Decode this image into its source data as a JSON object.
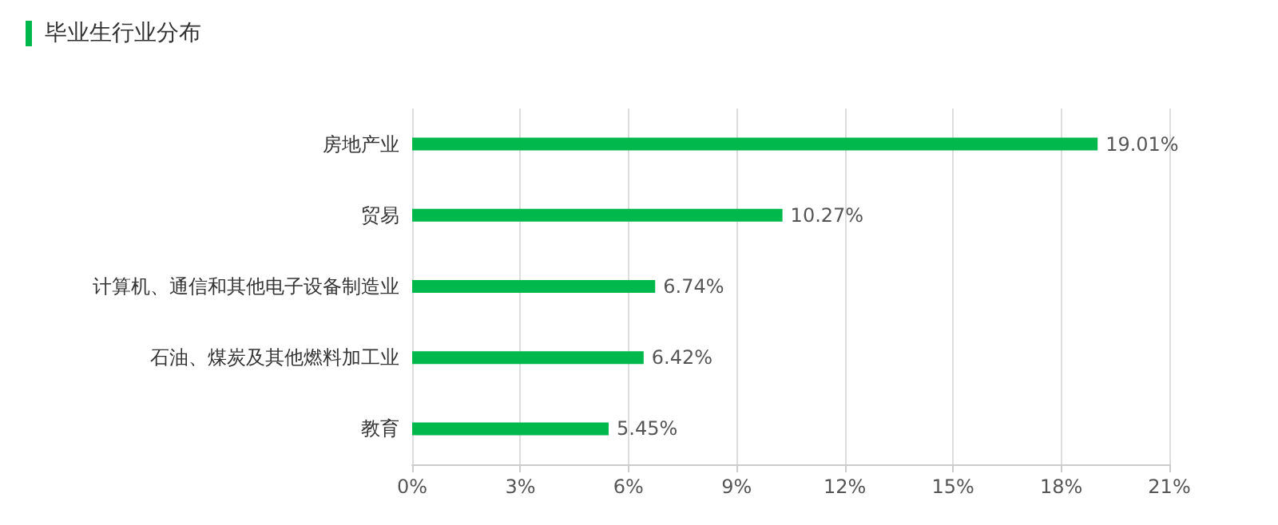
{
  "chart_data": {
    "type": "bar",
    "orientation": "horizontal",
    "title": "毕业生行业分布",
    "categories": [
      "房地产业",
      "贸易",
      "计算机、通信和其他电子设备制造业",
      "石油、煤炭及其他燃料加工业",
      "教育"
    ],
    "values": [
      19.01,
      10.27,
      6.74,
      6.42,
      5.45
    ],
    "value_labels": [
      "19.01%",
      "10.27%",
      "6.74%",
      "6.42%",
      "5.45%"
    ],
    "color": "#00b84c",
    "xlim": [
      0,
      21
    ],
    "xticks": [
      {
        "value": 0,
        "label": "0%"
      },
      {
        "value": 3,
        "label": "3%"
      },
      {
        "value": 6,
        "label": "6%"
      },
      {
        "value": 9,
        "label": "9%"
      },
      {
        "value": 12,
        "label": "12%"
      },
      {
        "value": 15,
        "label": "15%"
      },
      {
        "value": 18,
        "label": "18%"
      },
      {
        "value": 21,
        "label": "21%"
      }
    ],
    "grid": "x"
  }
}
